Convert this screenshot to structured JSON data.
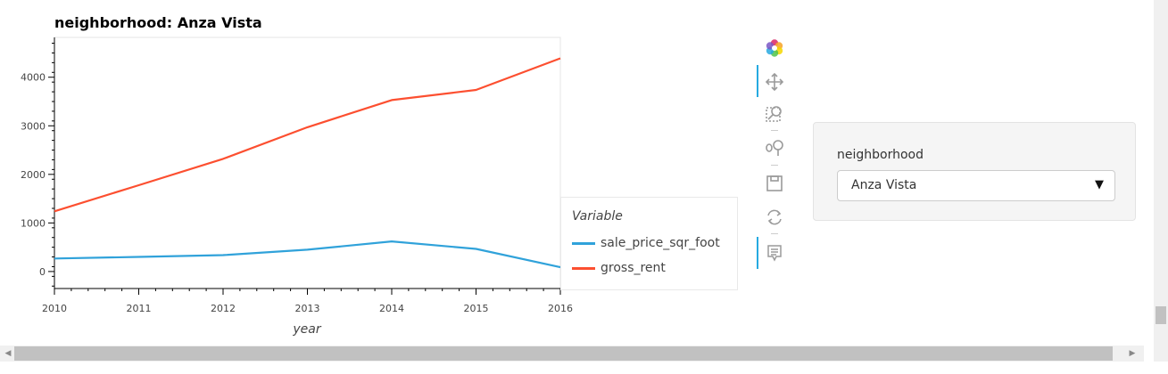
{
  "chart_data": {
    "type": "line",
    "title": "neighborhood: Anza Vista",
    "xlabel": "year",
    "ylabel": "",
    "x": [
      2010,
      2011,
      2012,
      2013,
      2014,
      2015,
      2016
    ],
    "xlim": [
      2010,
      2016
    ],
    "ylim": [
      -350,
      4820
    ],
    "yticks": [
      0,
      1000,
      2000,
      3000,
      4000
    ],
    "grid": false,
    "legend": {
      "title": "Variable",
      "placement": "right"
    },
    "series": [
      {
        "name": "sale_price_sqr_foot",
        "color": "#30a2da",
        "values": [
          267,
          300,
          337,
          450,
          620,
          465,
          88
        ]
      },
      {
        "name": "gross_rent",
        "color": "#fc4f30",
        "values": [
          1239,
          1776,
          2319,
          2971,
          3529,
          3739,
          4390
        ]
      }
    ]
  },
  "toolbar": {
    "tools": [
      "bokeh-logo-icon",
      "pan-icon",
      "box-zoom-icon",
      "wheel-zoom-icon",
      "save-icon",
      "reset-icon",
      "hover-icon"
    ]
  },
  "widget": {
    "label": "neighborhood",
    "selected": "Anza Vista",
    "arrow": "▼"
  },
  "scrollbar": {
    "left_arrow": "◀",
    "right_arrow": "▶"
  }
}
